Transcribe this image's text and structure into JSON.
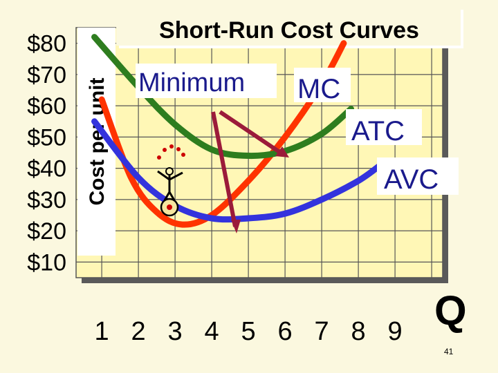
{
  "slide_number": "41",
  "chart_data": {
    "type": "line",
    "title": "Short-Run Cost Curves",
    "ylabel": "Cost per unit",
    "xlabel": "Q",
    "x_ticks": [
      "1",
      "2",
      "3",
      "4",
      "5",
      "6",
      "7",
      "8",
      "9"
    ],
    "y_ticks": [
      "$80",
      "$70",
      "$60",
      "$50",
      "$40",
      "$30",
      "$20",
      "$10"
    ],
    "xlim": [
      0.3,
      10.3
    ],
    "ylim": [
      5,
      85
    ],
    "grid": true,
    "annotation": "Minimum",
    "series": [
      {
        "name": "MC",
        "color": "#ff3300",
        "x": [
          1.0,
          1.8,
          2.5,
          3.2,
          4.0,
          5.0,
          6.0,
          7.0,
          7.6
        ],
        "y": [
          62,
          37,
          26,
          22,
          25,
          36,
          50,
          67,
          80
        ]
      },
      {
        "name": "ATC",
        "color": "#2e7d1f",
        "x": [
          0.8,
          2.0,
          3.0,
          4.0,
          5.0,
          6.0,
          7.0,
          7.8
        ],
        "y": [
          82,
          66,
          54,
          46,
          44,
          45.5,
          51,
          59
        ]
      },
      {
        "name": "AVC",
        "color": "#3333dd",
        "x": [
          0.8,
          2.0,
          3.0,
          4.0,
          5.0,
          6.0,
          7.0,
          8.0,
          8.6
        ],
        "y": [
          55,
          37,
          28,
          24,
          24,
          25.5,
          30,
          36,
          41
        ]
      }
    ]
  }
}
